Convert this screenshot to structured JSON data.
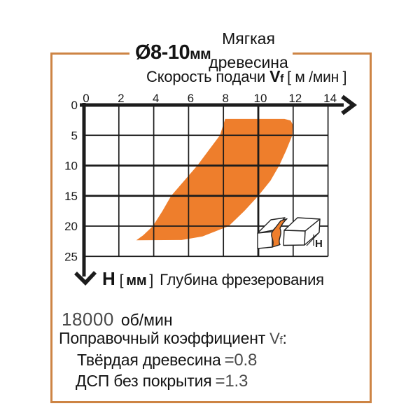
{
  "header": {
    "diameter_value": "Ø8-10",
    "diameter_unit": "мм",
    "material_line1": "Мягкая",
    "material_line2": "древесина",
    "feed_label": "Скорость подачи",
    "feed_symbol": "V",
    "feed_symbol_sub": "f",
    "feed_unit": "[ м /мин ]"
  },
  "chart_data": {
    "type": "area",
    "title": "Ø8-10мм — Мягкая древесина",
    "xlabel": "Скорость подачи Vf [м/мин]",
    "ylabel": "H [мм] Глубина фрезерования",
    "xlim": [
      0,
      14
    ],
    "ylim": [
      0,
      25
    ],
    "y_axis_inverted": true,
    "grid": true,
    "x_ticks": [
      0,
      2,
      4,
      6,
      8,
      10,
      12,
      14
    ],
    "y_ticks": [
      0,
      5,
      10,
      15,
      20,
      25
    ],
    "x_gridlines": [
      2,
      4,
      6,
      8,
      10,
      12,
      14
    ],
    "y_gridlines": [
      5,
      10,
      15,
      20,
      25
    ],
    "bold_x_gridlines": [
      10
    ],
    "bold_y_gridlines": [
      10,
      15
    ],
    "band_color": "#ee7e2c",
    "band_points": [
      [
        8.1,
        2.3
      ],
      [
        11.5,
        2.3
      ],
      [
        11.85,
        2.55
      ],
      [
        11.97,
        3.2
      ],
      [
        11.95,
        5
      ],
      [
        11.6,
        7.5
      ],
      [
        11.2,
        10
      ],
      [
        10.7,
        12.5
      ],
      [
        10.0,
        15
      ],
      [
        9.2,
        17.5
      ],
      [
        8.3,
        20
      ],
      [
        6.8,
        21.7
      ],
      [
        5.6,
        22.3
      ],
      [
        3.0,
        22.35
      ],
      [
        3.4,
        21.5
      ],
      [
        3.95,
        20
      ],
      [
        4.5,
        17.5
      ],
      [
        5.0,
        15
      ],
      [
        5.75,
        12.5
      ],
      [
        6.5,
        10
      ],
      [
        7.15,
        7.5
      ],
      [
        7.8,
        5
      ]
    ],
    "rpm": "18000 об/мин",
    "corrections": {
      "Твёрдая древесина": 0.8,
      "ДСП без покрытия": 1.3
    }
  },
  "footer": {
    "depth_symbol": "H",
    "depth_bracket_open": "[",
    "depth_unit": "мм",
    "depth_bracket_close": "]",
    "depth_label": "Глубина фрезерования",
    "rpm_value": "18000",
    "rpm_unit": "об/мин",
    "coeff_label": "Поправочный коэффициент",
    "coeff_symbol": "V",
    "coeff_symbol_sub": "f",
    "coeff_colon": ":",
    "hardwood_label": "Твёрдая древесина",
    "hardwood_value": "=0.8",
    "chipboard_label": "ДСП без покрытия",
    "chipboard_value": "=1.3"
  },
  "icon": {
    "depth_label": "H"
  },
  "colors": {
    "band": "#ee7e2c",
    "frame_border": "#cd8444",
    "axis": "#1c1c1c",
    "light_text": "#4a4a4a"
  }
}
